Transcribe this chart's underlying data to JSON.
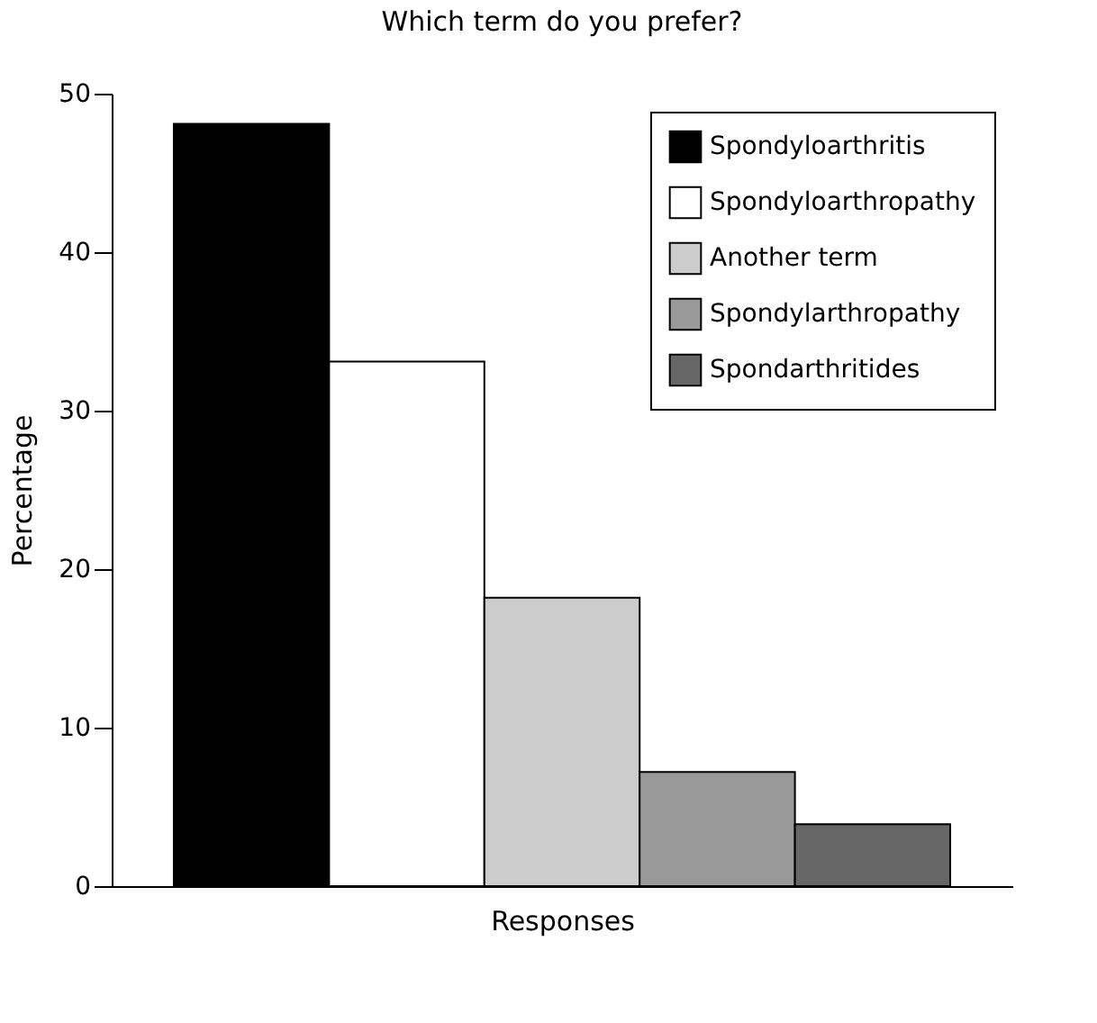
{
  "chart_data": {
    "type": "bar",
    "title": "Which term do you prefer?",
    "xlabel": "Responses",
    "ylabel": "Percentage",
    "categories": [
      null,
      null,
      null,
      null,
      null
    ],
    "series": [
      {
        "name": "Spondyloarthritis",
        "color": "#000000",
        "values": [
          48.1,
          null,
          null,
          null,
          null
        ]
      },
      {
        "name": "Spondyloarthropathy",
        "color": "#ffffff",
        "values": [
          null,
          33.1,
          null,
          null,
          null
        ]
      },
      {
        "name": "Another term",
        "color": "#cccccc",
        "values": [
          null,
          null,
          18.2,
          null,
          null
        ]
      },
      {
        "name": "Spondylarthropathy",
        "color": "#999999",
        "values": [
          null,
          null,
          null,
          7.2,
          null
        ]
      },
      {
        "name": "Spondarthritides",
        "color": "#666666",
        "values": [
          null,
          null,
          null,
          null,
          3.9
        ]
      }
    ],
    "ylim": [
      0,
      50
    ],
    "yticks": [
      0,
      10,
      20,
      30,
      40,
      50
    ],
    "grid": false,
    "legend": "top right",
    "tick_labels": "y"
  }
}
